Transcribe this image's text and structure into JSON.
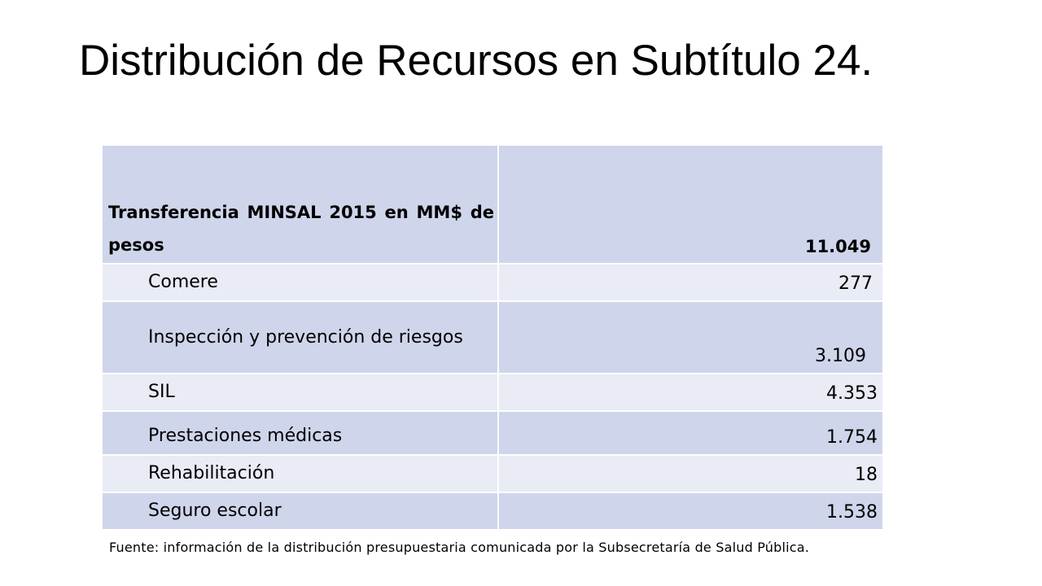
{
  "slide": {
    "title": "Distribución de Recursos en Subtítulo 24.",
    "footnote": "Fuente:  información de la distribución presupuestaria comunicada por la Subsecretaría de Salud Pública."
  },
  "table": {
    "header": {
      "label": "Transferencia MINSAL 2015 en MM$ de pesos",
      "value": "11.049"
    },
    "rows": [
      {
        "label": "Comere",
        "value": "277"
      },
      {
        "label": "Inspección  y prevención de riesgos",
        "value": "3.109"
      },
      {
        "label": "SIL",
        "value": "4.353"
      },
      {
        "label": "Prestaciones médicas",
        "value": "1.754"
      },
      {
        "label": "Rehabilitación",
        "value": "18"
      },
      {
        "label": "Seguro escolar",
        "value": "1.538"
      }
    ]
  },
  "colors": {
    "row_dark": "#cfd5ea",
    "row_light": "#e9ebf5"
  }
}
